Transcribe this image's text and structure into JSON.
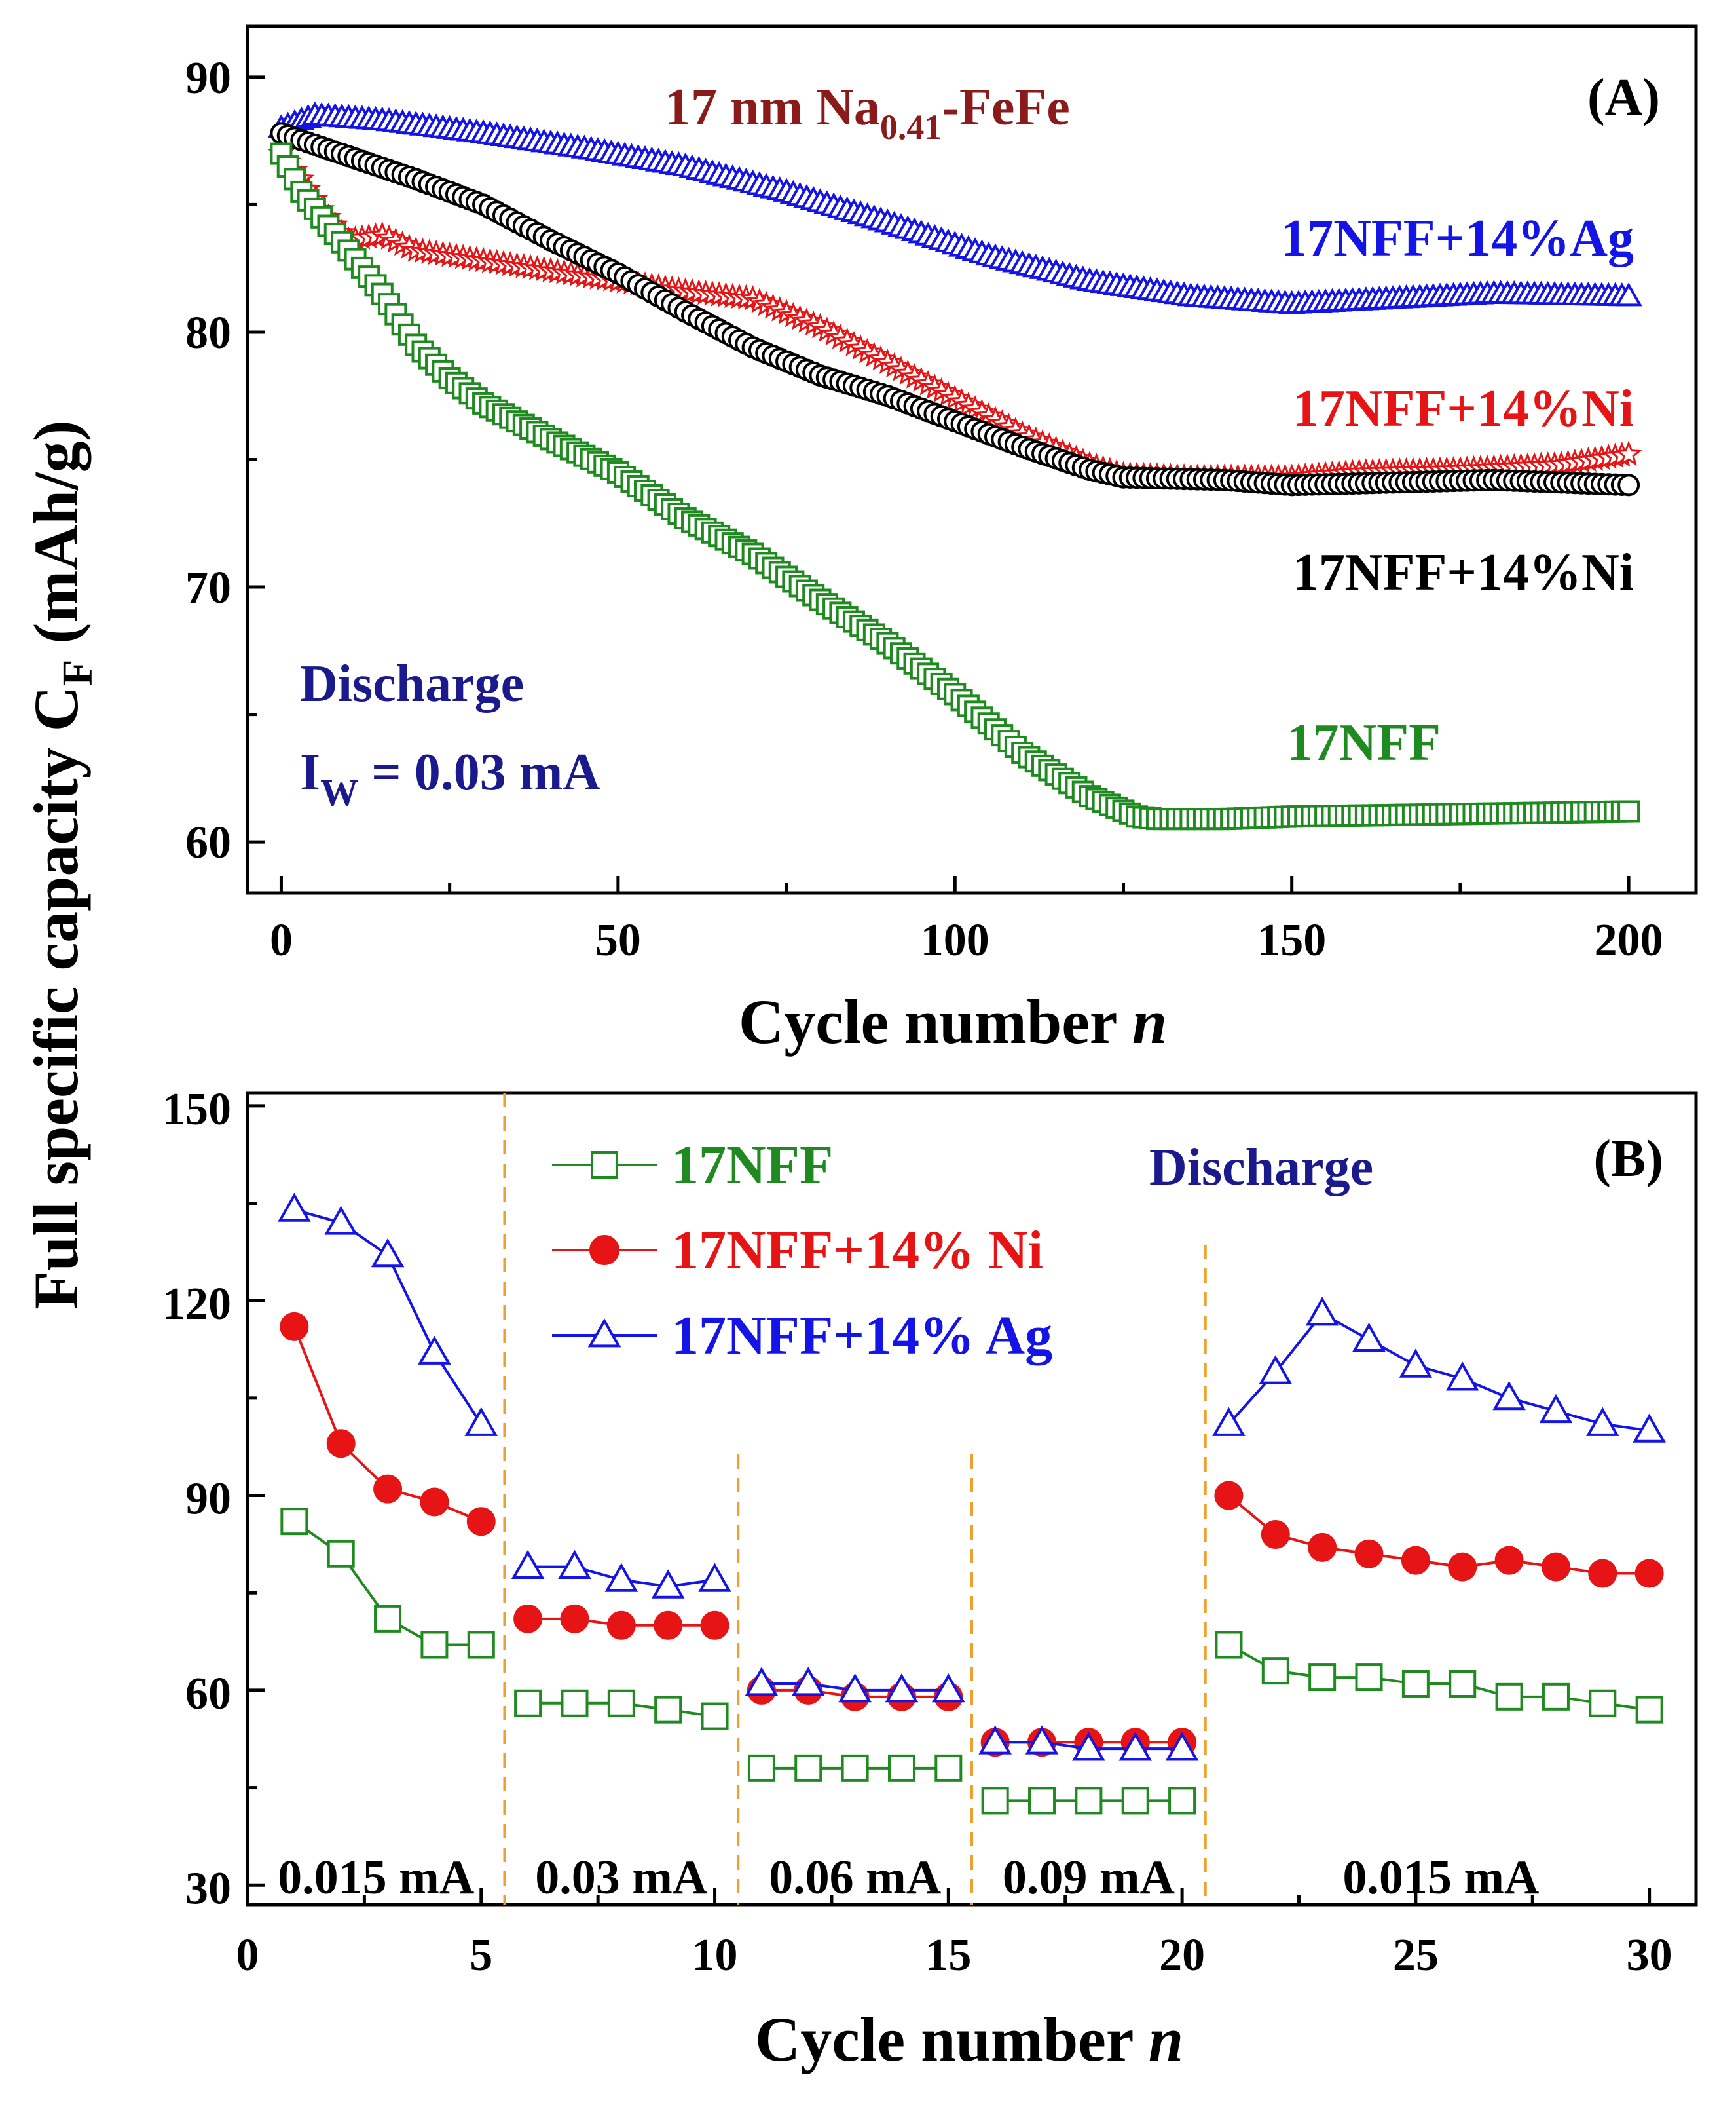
{
  "chart_data": [
    {
      "type": "scatter",
      "panel": "(A)",
      "title": "17 nm Na0.41-FeFe",
      "title_parts": {
        "main": "17 nm Na",
        "subscript": "0.41",
        "suffix": "-FeFe"
      },
      "xlabel": "Cycle number",
      "xlabel_var": "n",
      "ylabel": "Full specific capacity C",
      "ylabel_subscript": "F",
      "ylabel_unit": "(mAh/g)",
      "xlim": [
        -5,
        210
      ],
      "ylim": [
        58,
        92
      ],
      "xticks": [
        "0",
        "50",
        "100",
        "150",
        "200"
      ],
      "yticks": [
        "60",
        "70",
        "80",
        "90"
      ],
      "grid": false,
      "annotations": {
        "mode": "Discharge",
        "current_label": "I",
        "current_subscript": "W",
        "current_value": " = 0.03 mA"
      },
      "series": [
        {
          "name": "17NFF+14%Ag",
          "color": "#1414e6",
          "marker": "triangle-open",
          "x": [
            0,
            5,
            15,
            30,
            45,
            60,
            75,
            90,
            105,
            120,
            135,
            150,
            165,
            180,
            200
          ],
          "y": [
            88.0,
            88.5,
            88.3,
            87.8,
            87.2,
            86.5,
            85.5,
            84.3,
            83.0,
            82.0,
            81.4,
            81.1,
            81.3,
            81.5,
            81.4
          ]
        },
        {
          "name": "17NFF+14%Ni",
          "color": "#e61414",
          "marker": "star-open",
          "x": [
            0,
            3,
            6,
            10,
            15,
            20,
            30,
            45,
            60,
            70,
            80,
            90,
            100,
            110,
            120,
            125,
            135,
            150,
            160,
            175,
            190,
            200
          ],
          "y": [
            87.0,
            86.0,
            84.8,
            83.6,
            83.8,
            83.2,
            82.8,
            82.2,
            81.6,
            81.3,
            80.2,
            78.8,
            77.4,
            76.0,
            74.8,
            74.4,
            74.3,
            74.3,
            74.5,
            74.6,
            74.8,
            75.2
          ]
        },
        {
          "name": "17NFF+14%Ni",
          "color": "#000000",
          "marker": "circle-open",
          "x": [
            0,
            10,
            20,
            30,
            40,
            50,
            60,
            70,
            80,
            90,
            100,
            110,
            120,
            125,
            140,
            150,
            165,
            180,
            200
          ],
          "y": [
            87.8,
            86.9,
            86.0,
            85.0,
            83.6,
            82.3,
            80.8,
            79.4,
            78.3,
            77.5,
            76.5,
            75.5,
            74.6,
            74.3,
            74.2,
            74.0,
            74.1,
            74.2,
            74.0
          ]
        },
        {
          "name": "17NFF",
          "color": "#1f8a1f",
          "marker": "square-open",
          "x": [
            0,
            3,
            6,
            10,
            15,
            20,
            25,
            30,
            40,
            50,
            60,
            70,
            80,
            90,
            100,
            110,
            120,
            127,
            130,
            140,
            150,
            175,
            200
          ],
          "y": [
            87.0,
            85.5,
            84.5,
            83.2,
            81.5,
            79.5,
            78.2,
            77.2,
            75.8,
            74.5,
            72.7,
            71.3,
            69.5,
            67.8,
            65.8,
            63.5,
            61.8,
            61.0,
            60.9,
            60.9,
            61.0,
            61.1,
            61.2
          ]
        }
      ],
      "series_labels": [
        "17NFF+14%Ag",
        "17NFF+14%Ni",
        "17NFF+14%Ni",
        "17NFF"
      ]
    },
    {
      "type": "line",
      "panel": "(B)",
      "xlabel": "Cycle number",
      "xlabel_var": "n",
      "xlim": [
        0,
        31
      ],
      "ylim": [
        27,
        152
      ],
      "xticks": [
        "0",
        "5",
        "10",
        "15",
        "20",
        "25",
        "30"
      ],
      "yticks": [
        "30",
        "60",
        "90",
        "120",
        "150"
      ],
      "grid": false,
      "annotation": "Discharge",
      "legend_position": "top-left",
      "rate_labels": [
        "0.015 mA",
        "0.03 mA",
        "0.06 mA",
        "0.09 mA",
        "0.015 mA"
      ],
      "rate_boundaries": [
        5.5,
        10.5,
        15.5,
        20.5
      ],
      "x": [
        1,
        2,
        3,
        4,
        5,
        6,
        7,
        8,
        9,
        10,
        11,
        12,
        13,
        14,
        15,
        16,
        17,
        18,
        19,
        20,
        21,
        22,
        23,
        24,
        25,
        26,
        27,
        28,
        29,
        30
      ],
      "series": [
        {
          "name": "17NFF",
          "color": "#1f8a1f",
          "marker": "square-open",
          "values": [
            86,
            81,
            71,
            67,
            67,
            58,
            58,
            58,
            57,
            56,
            48,
            48,
            48,
            48,
            48,
            43,
            43,
            43,
            43,
            43,
            67,
            63,
            62,
            62,
            61,
            61,
            59,
            59,
            58,
            57
          ]
        },
        {
          "name": "17NFF+14% Ni",
          "color": "#e61414",
          "marker": "circle-filled",
          "values": [
            116,
            98,
            91,
            89,
            86,
            71,
            71,
            70,
            70,
            70,
            60,
            60,
            59,
            59,
            59,
            52,
            52,
            52,
            52,
            52,
            90,
            84,
            82,
            81,
            80,
            79,
            80,
            79,
            78,
            78
          ]
        },
        {
          "name": "17NFF+14% Ag",
          "color": "#1414e6",
          "marker": "triangle-open",
          "values": [
            134,
            132,
            127,
            112,
            101,
            79,
            79,
            77,
            76,
            77,
            61,
            61,
            60,
            60,
            60,
            52,
            52,
            51,
            51,
            51,
            101,
            109,
            118,
            114,
            110,
            108,
            105,
            103,
            101,
            100
          ]
        }
      ]
    }
  ]
}
